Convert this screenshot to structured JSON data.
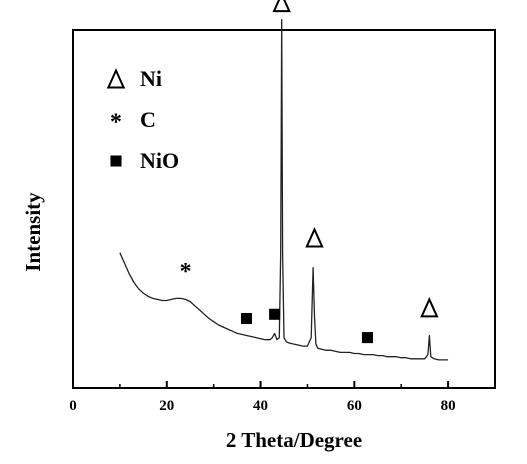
{
  "chart_data": {
    "type": "line",
    "title": "",
    "xlabel": "2 Theta/Degree",
    "ylabel": "Intensity",
    "xlim": [
      0,
      90
    ],
    "x_ticks": [
      0,
      20,
      40,
      60,
      80
    ],
    "y_ticks_shown": false,
    "series": [
      {
        "x": [
          10,
          11,
          12,
          13,
          14,
          15,
          16,
          17,
          18,
          19,
          20,
          21,
          22,
          23,
          24,
          25,
          26,
          27,
          28,
          29,
          30,
          31,
          32,
          33,
          34,
          35,
          36,
          37,
          38,
          39,
          40,
          41,
          42,
          42.5,
          43,
          43.5,
          44,
          44.3,
          44.5,
          44.7,
          45,
          45.5,
          46,
          47,
          48,
          49,
          50,
          50.8,
          51.2,
          51.5,
          51.8,
          52.2,
          53,
          54,
          55,
          56,
          57,
          58,
          59,
          60,
          61,
          62,
          63,
          64,
          65,
          66,
          67,
          68,
          69,
          70,
          71,
          72,
          73,
          74,
          75,
          75.7,
          76,
          76.3,
          77,
          78,
          79,
          80
        ],
        "y": [
          0.6,
          0.55,
          0.5,
          0.46,
          0.43,
          0.41,
          0.395,
          0.385,
          0.38,
          0.375,
          0.375,
          0.38,
          0.385,
          0.385,
          0.38,
          0.37,
          0.35,
          0.33,
          0.31,
          0.29,
          0.275,
          0.26,
          0.25,
          0.24,
          0.23,
          0.22,
          0.215,
          0.21,
          0.205,
          0.2,
          0.195,
          0.19,
          0.19,
          0.2,
          0.22,
          0.19,
          0.2,
          0.6,
          1.7,
          0.6,
          0.2,
          0.18,
          0.175,
          0.17,
          0.165,
          0.16,
          0.16,
          0.2,
          0.53,
          0.3,
          0.17,
          0.15,
          0.145,
          0.14,
          0.14,
          0.135,
          0.13,
          0.13,
          0.13,
          0.125,
          0.125,
          0.12,
          0.12,
          0.12,
          0.115,
          0.115,
          0.11,
          0.11,
          0.11,
          0.105,
          0.105,
          0.1,
          0.1,
          0.1,
          0.1,
          0.12,
          0.21,
          0.11,
          0.1,
          0.095,
          0.095,
          0.095
        ]
      }
    ],
    "markers": [
      {
        "symbol": "△",
        "x": 44.5,
        "y": 1.78,
        "phase": "Ni"
      },
      {
        "symbol": "△",
        "x": 51.5,
        "y": 0.67,
        "phase": "Ni"
      },
      {
        "symbol": "△",
        "x": 76.0,
        "y": 0.34,
        "phase": "Ni"
      },
      {
        "symbol": "*",
        "x": 24.0,
        "y": 0.52,
        "phase": "C"
      },
      {
        "symbol": "■",
        "x": 37.0,
        "y": 0.29,
        "phase": "NiO"
      },
      {
        "symbol": "■",
        "x": 43.0,
        "y": 0.31,
        "phase": "NiO"
      },
      {
        "symbol": "■",
        "x": 62.8,
        "y": 0.2,
        "phase": "NiO"
      }
    ],
    "legend": {
      "placement": "top-left",
      "entries": [
        {
          "symbol": "△",
          "label": "Ni"
        },
        {
          "symbol": "*",
          "label": "C"
        },
        {
          "symbol": "■",
          "label": "NiO"
        }
      ]
    }
  }
}
